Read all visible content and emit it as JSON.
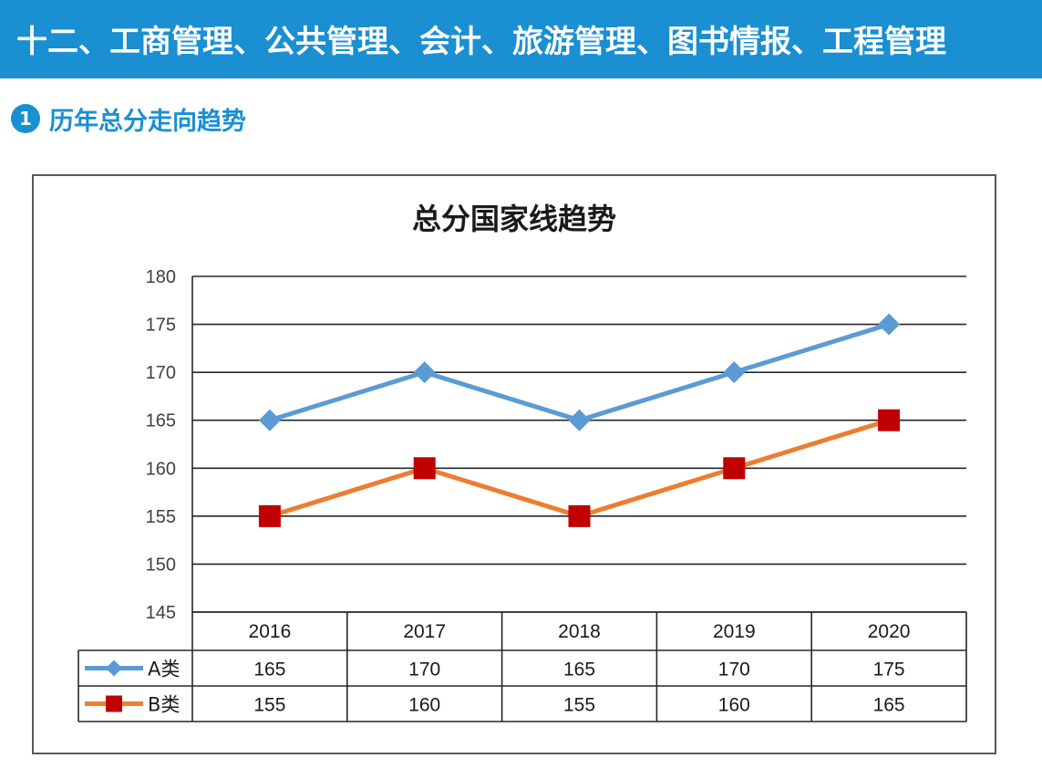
{
  "header": {
    "title": "十二、工商管理、公共管理、会计、旅游管理、图书情报、工程管理"
  },
  "section": {
    "number": "1",
    "title": "历年总分走向趋势"
  },
  "colors": {
    "banner": "#1a8fd2",
    "seriesA": "#5b9bd5",
    "seriesB_line": "#ed7d31",
    "seriesB_marker": "#c00000"
  },
  "chart_data": {
    "type": "line",
    "title": "总分国家线趋势",
    "xlabel": "",
    "ylabel": "",
    "categories": [
      "2016",
      "2017",
      "2018",
      "2019",
      "2020"
    ],
    "ylim": [
      145,
      180
    ],
    "yticks": [
      145,
      150,
      155,
      160,
      165,
      170,
      175,
      180
    ],
    "grid": true,
    "legend": "data-table",
    "series": [
      {
        "name": "A类",
        "values": [
          165,
          170,
          165,
          170,
          175
        ],
        "marker": "diamond",
        "color": "#5b9bd5"
      },
      {
        "name": "B类",
        "values": [
          155,
          160,
          155,
          160,
          165
        ],
        "marker": "square",
        "color": "#ed7d31",
        "marker_color": "#c00000"
      }
    ]
  }
}
